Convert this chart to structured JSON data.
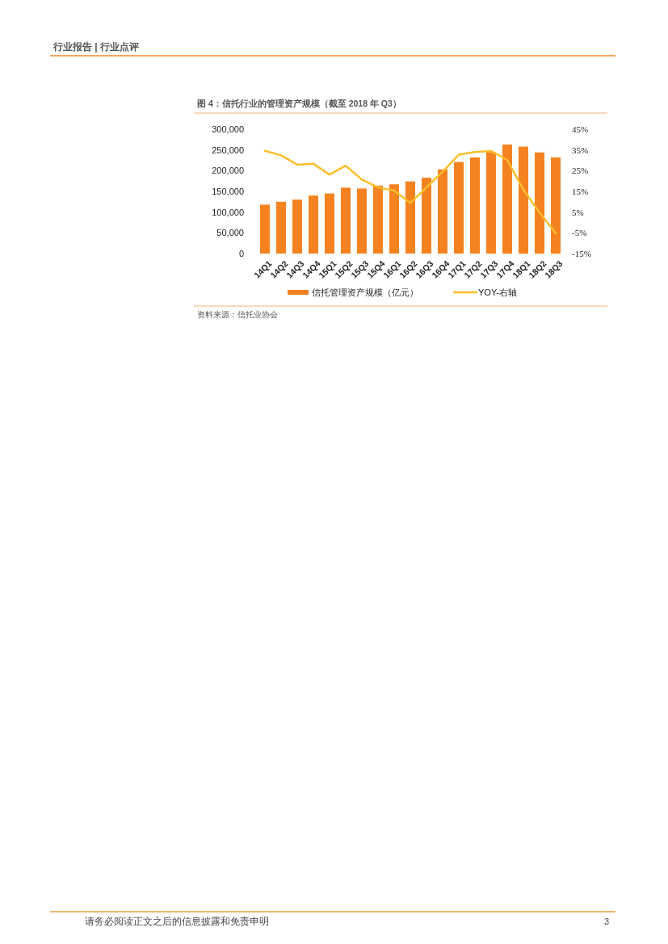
{
  "chart_data": {
    "type": "bar",
    "title": "图 4：信托行业的管理资产规模（截至 2018 年 Q3）",
    "annotations": [
      "行业报告 | 行业点评",
      "资料来源：信托业协会",
      "请务必阅读正文之后的信息披露和免责申明",
      "3"
    ],
    "categories": [
      "14Q1",
      "14Q2",
      "14Q3",
      "14Q4",
      "15Q1",
      "15Q2",
      "15Q3",
      "15Q4",
      "16Q1",
      "16Q2",
      "16Q3",
      "16Q4",
      "17Q1",
      "17Q2",
      "17Q3",
      "17Q4",
      "18Q1",
      "18Q2",
      "18Q3"
    ],
    "series": [
      {
        "name": "信托管理资产规模（亿元）",
        "color": "#f58220",
        "values": [
          118000,
          125000,
          130000,
          140000,
          145000,
          159000,
          157000,
          164000,
          167000,
          174000,
          183000,
          203000,
          221000,
          232000,
          245000,
          263000,
          258000,
          244000,
          232000
        ]
      },
      {
        "name": "YOY-右轴",
        "type": "line",
        "axis": "y2",
        "color": "#fbbf2c",
        "values": [
          34.6,
          32.4,
          27.9,
          28.3,
          23.1,
          27.4,
          20.7,
          16.9,
          15.4,
          9.4,
          16.9,
          24.5,
          32.7,
          34.0,
          34.5,
          30.1,
          15.8,
          4.8,
          -5.2
        ]
      }
    ],
    "ylim": [
      0,
      300000
    ],
    "yticks": [
      {
        "value": 0,
        "label": "0"
      },
      {
        "value": 50000,
        "label": "50,000"
      },
      {
        "value": 100000,
        "label": "100,000"
      },
      {
        "value": 150000,
        "label": "150,000"
      },
      {
        "value": 200000,
        "label": "200,000"
      },
      {
        "value": 250000,
        "label": "250,000"
      },
      {
        "value": 300000,
        "label": "300,000"
      }
    ],
    "y2lim": [
      -15,
      45
    ],
    "y2ticks": [
      {
        "value": -15,
        "label": "-15%"
      },
      {
        "value": -5,
        "label": "-5%"
      },
      {
        "value": 5,
        "label": "5%"
      },
      {
        "value": 15,
        "label": "15%"
      },
      {
        "value": 25,
        "label": "25%"
      },
      {
        "value": 35,
        "label": "35%"
      },
      {
        "value": 45,
        "label": "45%"
      }
    ],
    "grid": false,
    "legend": "bottom"
  }
}
